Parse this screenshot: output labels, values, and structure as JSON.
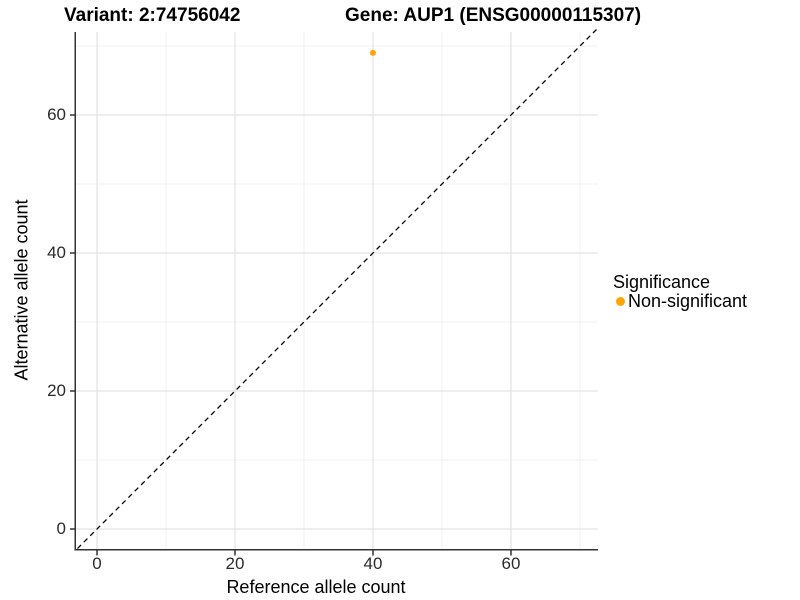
{
  "chart_data": {
    "type": "scatter",
    "titles": {
      "left": "Variant: 2:74756042",
      "right": "Gene: AUP1 (ENSG00000115307)"
    },
    "xlabel": "Reference allele count",
    "ylabel": "Alternative allele count",
    "x_ticks": [
      0,
      20,
      40,
      60
    ],
    "y_ticks": [
      0,
      20,
      40,
      60
    ],
    "xlim": [
      -3.5,
      72.5
    ],
    "ylim": [
      -3.5,
      72.5
    ],
    "grid": "major and minor light-grey gridlines on white background",
    "reference_line": {
      "kind": "identity y=x",
      "style": "dashed",
      "color": "#000000"
    },
    "series": [
      {
        "name": "Non-significant",
        "color": "#FFA500",
        "points": [
          {
            "x": 40,
            "y": 69
          }
        ]
      }
    ],
    "legend": {
      "title": "Significance",
      "position": "right",
      "entries": [
        {
          "label": "Non-significant",
          "color": "#FFA500"
        }
      ]
    }
  }
}
